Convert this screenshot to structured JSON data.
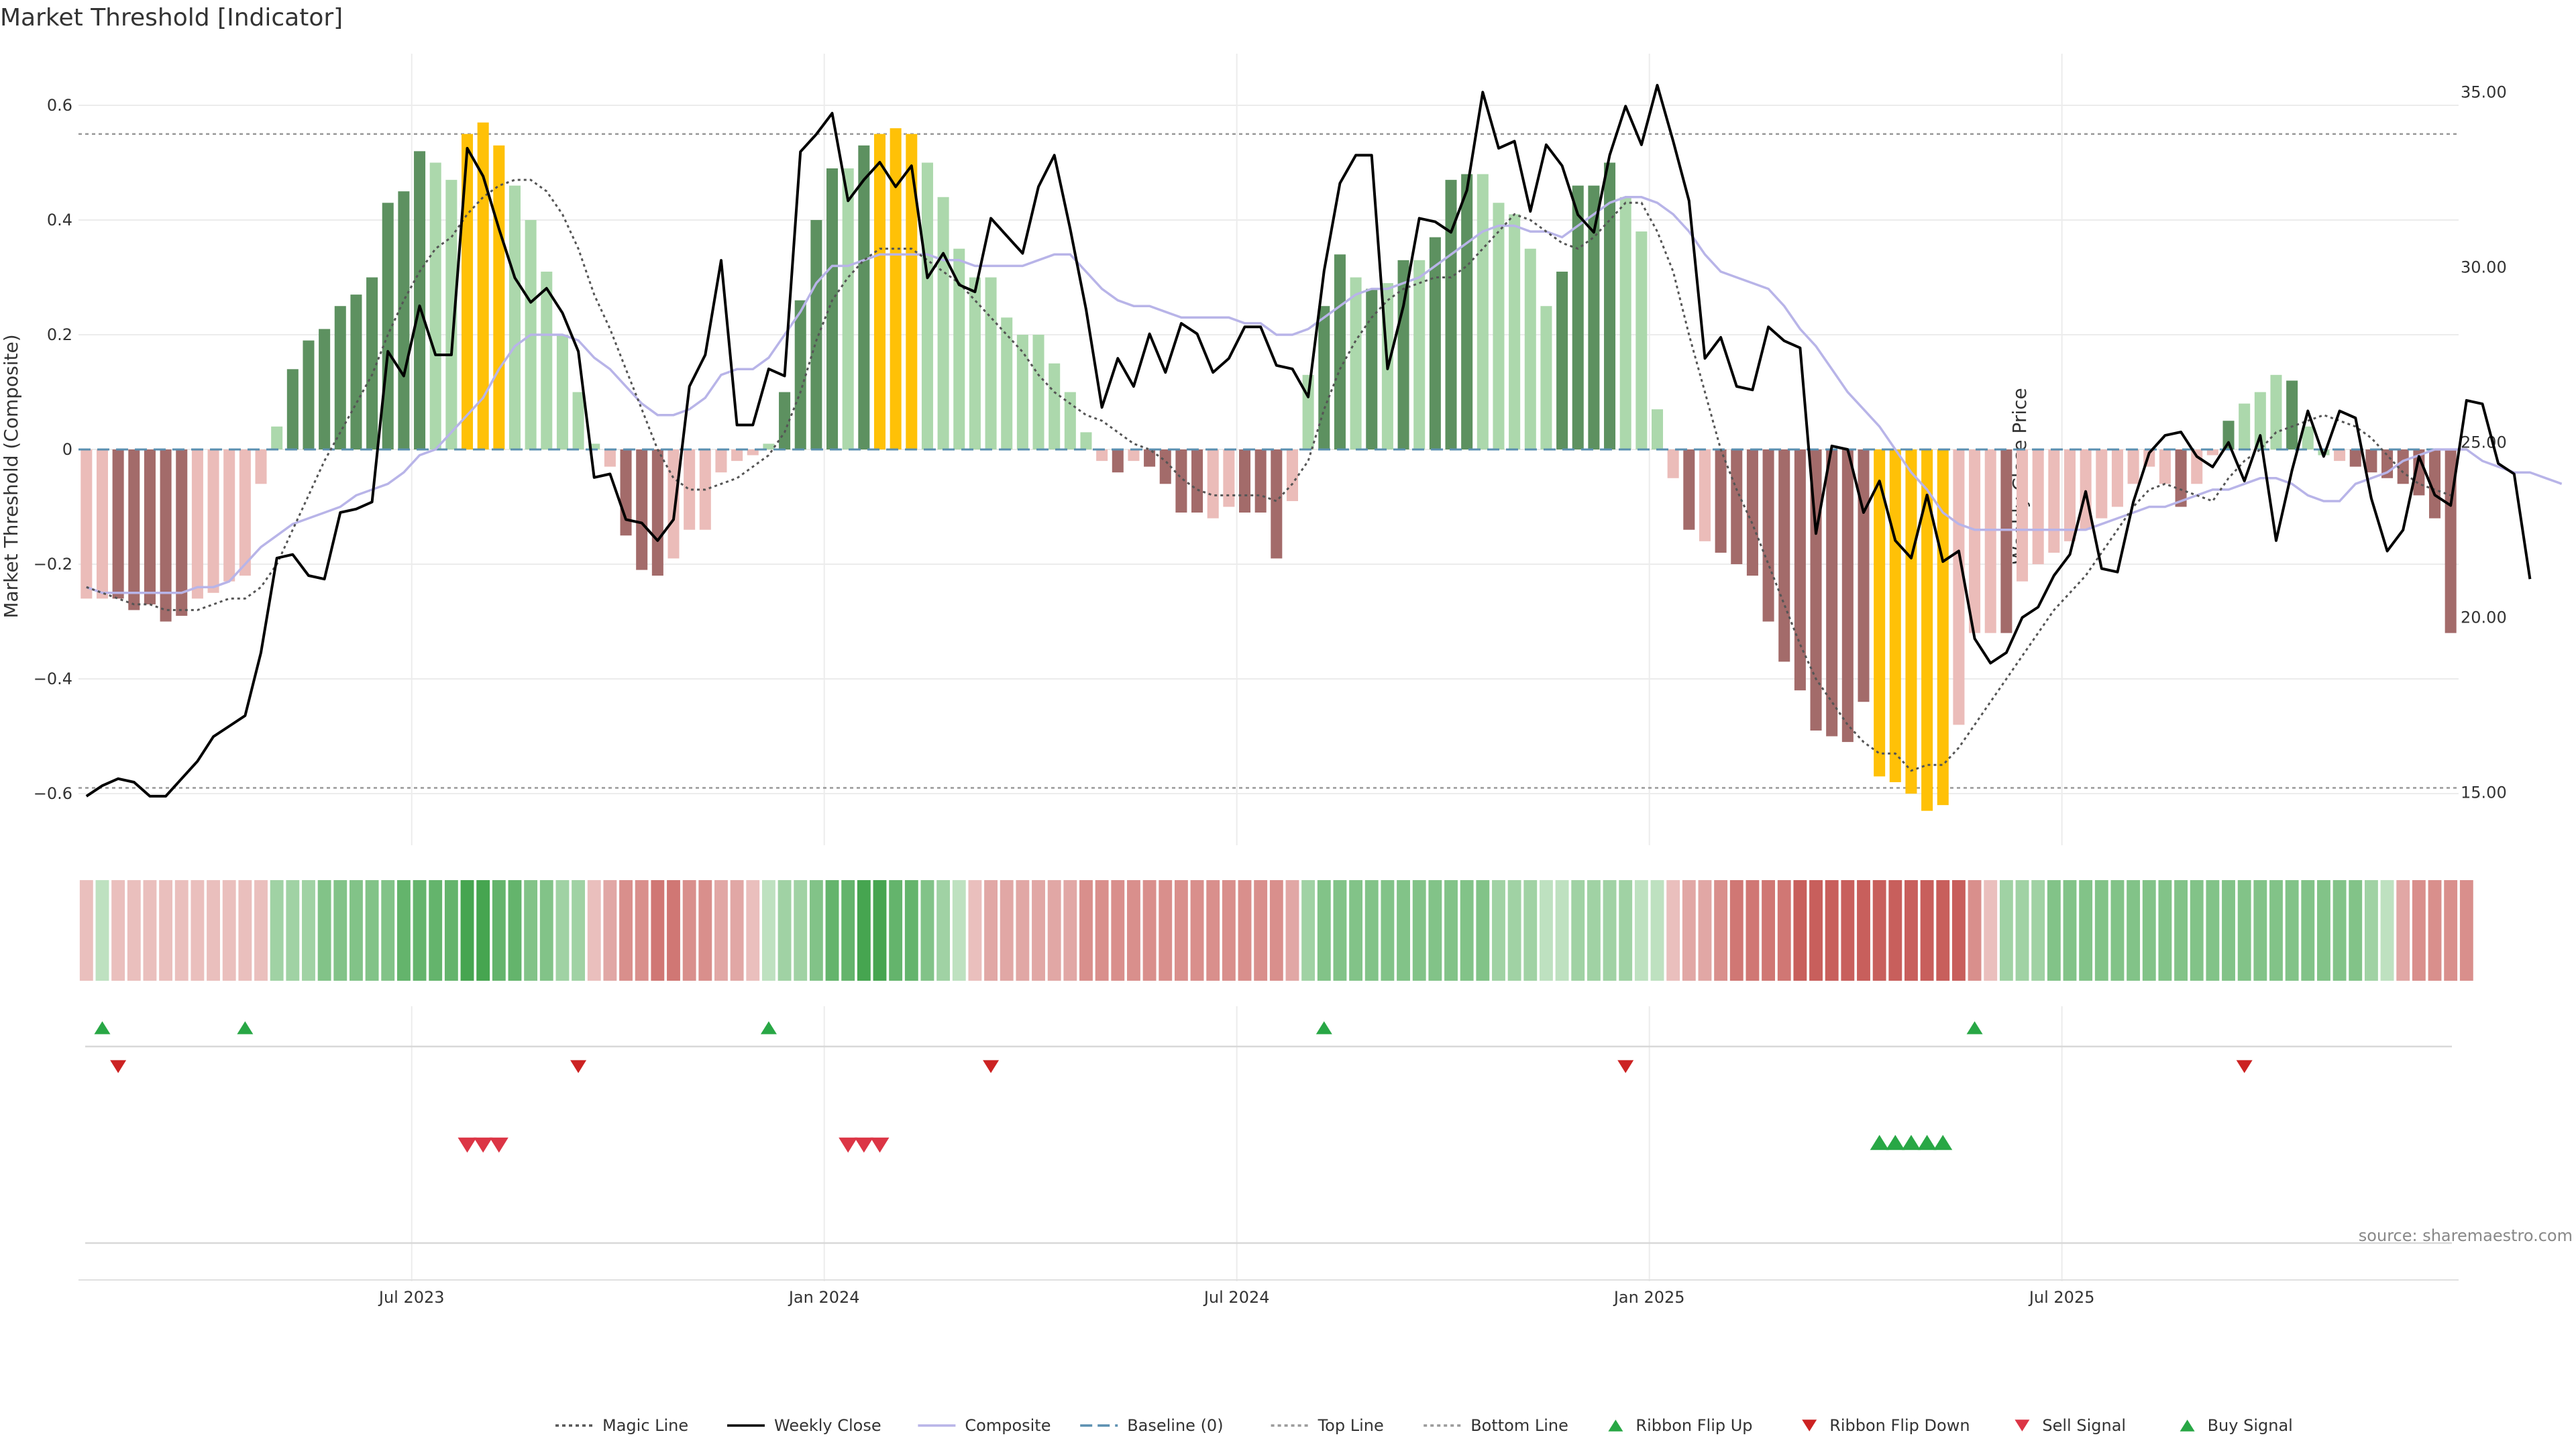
{
  "title": "Market Threshold [Indicator]",
  "source": "source: sharemaestro.com",
  "colors": {
    "strong_pos": "#5d9160",
    "weak_pos": "#acd8ac",
    "strong_neg": "#a36b6a",
    "weak_neg": "#ebbcb9",
    "extreme": "#ffc107",
    "weekly_close": "#000000",
    "composite": "#b8b4e8",
    "magic": "#555555",
    "baseline": "#5a8fb0",
    "grid": "#ececec",
    "sell": "#dc3545",
    "buy": "#28a745",
    "flip_up": "#28a745",
    "flip_down": "#cc2222"
  },
  "chart_data": {
    "type": "bar",
    "title": "Market Threshold [Indicator]",
    "ylabel": "Market Threshold (Composite)",
    "y2label": "Weekly Close Price",
    "ylim": [
      -0.69,
      0.69
    ],
    "y2lim": [
      13.5,
      36.1
    ],
    "yticks": [
      "0.6",
      "0.4",
      "0.2",
      "0",
      "−0.2",
      "−0.4",
      "−0.6"
    ],
    "yticks_values": [
      0.6,
      0.4,
      0.2,
      0,
      -0.2,
      -0.4,
      -0.6
    ],
    "y2ticks": [
      "35.00",
      "30.00",
      "25.00",
      "20.00",
      "15.00"
    ],
    "y2ticks_values": [
      35,
      30,
      25,
      20,
      15
    ],
    "xticks": [
      {
        "label": "Jul 2023",
        "week": 21
      },
      {
        "label": "Jan 2024",
        "week": 47
      },
      {
        "label": "Jul 2024",
        "week": 73
      },
      {
        "label": "Jan 2025",
        "week": 99
      },
      {
        "label": "Jul 2025",
        "week": 125
      }
    ],
    "top_line": 0.55,
    "bottom_line": -0.59,
    "baseline": 0,
    "grid": true,
    "legend_position": "bottom",
    "composite_bars": [
      -0.26,
      -0.26,
      -0.26,
      -0.28,
      -0.27,
      -0.3,
      -0.29,
      -0.26,
      -0.25,
      -0.23,
      -0.22,
      -0.06,
      0.04,
      0.14,
      0.19,
      0.21,
      0.25,
      0.27,
      0.3,
      0.43,
      0.45,
      0.52,
      0.5,
      0.47,
      0.55,
      0.57,
      0.53,
      0.46,
      0.4,
      0.31,
      0.2,
      0.1,
      0.01,
      -0.03,
      -0.15,
      -0.21,
      -0.22,
      -0.19,
      -0.14,
      -0.14,
      -0.04,
      -0.02,
      -0.01,
      0.01,
      0.1,
      0.26,
      0.4,
      0.49,
      0.49,
      0.53,
      0.55,
      0.56,
      0.55,
      0.5,
      0.44,
      0.35,
      0.3,
      0.3,
      0.23,
      0.2,
      0.2,
      0.15,
      0.1,
      0.03,
      -0.02,
      -0.04,
      -0.02,
      -0.03,
      -0.06,
      -0.11,
      -0.11,
      -0.12,
      -0.1,
      -0.11,
      -0.11,
      -0.19,
      -0.09,
      0.13,
      0.25,
      0.34,
      0.3,
      0.28,
      0.29,
      0.33,
      0.33,
      0.37,
      0.47,
      0.48,
      0.48,
      0.43,
      0.41,
      0.35,
      0.25,
      0.31,
      0.46,
      0.46,
      0.5,
      0.44,
      0.38,
      0.07,
      -0.05,
      -0.14,
      -0.16,
      -0.18,
      -0.2,
      -0.22,
      -0.3,
      -0.37,
      -0.42,
      -0.49,
      -0.5,
      -0.51,
      -0.44,
      -0.57,
      -0.58,
      -0.6,
      -0.63,
      -0.62,
      -0.48,
      -0.32,
      -0.32,
      -0.32,
      -0.23,
      -0.2,
      -0.18,
      -0.16,
      -0.14,
      -0.12,
      -0.1,
      -0.06,
      -0.03,
      -0.06,
      -0.1,
      -0.06,
      -0.01,
      0.05,
      0.08,
      0.1,
      0.13,
      0.12,
      0.04,
      -0.01,
      -0.02,
      -0.03,
      -0.04,
      -0.05,
      -0.06,
      -0.08,
      -0.12,
      -0.32
    ],
    "bar_classes": [
      "wn",
      "wn",
      "sn",
      "sn",
      "sn",
      "sn",
      "sn",
      "wn",
      "wn",
      "wn",
      "wn",
      "wn",
      "wp",
      "sp",
      "sp",
      "sp",
      "sp",
      "sp",
      "sp",
      "sp",
      "sp",
      "sp",
      "wp",
      "wp",
      "ex",
      "ex",
      "ex",
      "wp",
      "wp",
      "wp",
      "wp",
      "wp",
      "wp",
      "wn",
      "sn",
      "sn",
      "sn",
      "wn",
      "wn",
      "wn",
      "wn",
      "wn",
      "wn",
      "wp",
      "sp",
      "sp",
      "sp",
      "sp",
      "wp",
      "sp",
      "ex",
      "ex",
      "ex",
      "wp",
      "wp",
      "wp",
      "wp",
      "wp",
      "wp",
      "wp",
      "wp",
      "wp",
      "wp",
      "wp",
      "wn",
      "sn",
      "wn",
      "sn",
      "sn",
      "sn",
      "sn",
      "wn",
      "wn",
      "sn",
      "sn",
      "sn",
      "wn",
      "wp",
      "sp",
      "sp",
      "wp",
      "sp",
      "wp",
      "sp",
      "wp",
      "sp",
      "sp",
      "sp",
      "wp",
      "wp",
      "wp",
      "wp",
      "wp",
      "sp",
      "sp",
      "sp",
      "sp",
      "wp",
      "wp",
      "wp",
      "wn",
      "sn",
      "wn",
      "sn",
      "sn",
      "sn",
      "sn",
      "sn",
      "sn",
      "sn",
      "sn",
      "sn",
      "sn",
      "ex",
      "ex",
      "ex",
      "ex",
      "ex",
      "wn",
      "wn",
      "wn",
      "sn",
      "wn",
      "wn",
      "wn",
      "wn",
      "wn",
      "wn",
      "wn",
      "wn",
      "wn",
      "wn",
      "sn",
      "wn",
      "wn",
      "sp",
      "wp",
      "wp",
      "wp",
      "sp",
      "wp",
      "wp",
      "wn",
      "sn",
      "sn",
      "sn",
      "sn",
      "sn",
      "sn",
      "sn",
      "sn"
    ],
    "weekly_close": [
      14.9,
      15.2,
      15.4,
      15.3,
      14.9,
      14.9,
      15.4,
      15.9,
      16.6,
      16.9,
      17.2,
      19.0,
      21.7,
      21.8,
      21.2,
      21.1,
      23.0,
      23.1,
      23.3,
      27.6,
      26.9,
      28.9,
      27.5,
      27.5,
      33.4,
      32.6,
      31.1,
      29.7,
      29.0,
      29.4,
      28.7,
      27.6,
      24.0,
      24.1,
      22.8,
      22.7,
      22.2,
      22.8,
      26.6,
      27.5,
      30.2,
      25.5,
      25.5,
      27.1,
      26.9,
      33.3,
      33.8,
      34.4,
      31.9,
      32.5,
      33.0,
      32.3,
      32.9,
      29.7,
      30.4,
      29.5,
      29.3,
      31.4,
      30.9,
      30.4,
      32.3,
      33.2,
      31.1,
      28.8,
      26.0,
      27.4,
      26.6,
      28.1,
      27.0,
      28.4,
      28.1,
      27.0,
      27.4,
      28.3,
      28.3,
      27.2,
      27.1,
      26.3,
      29.9,
      32.4,
      33.2,
      33.2,
      27.1,
      28.9,
      31.4,
      31.3,
      31.0,
      32.2,
      35.0,
      33.4,
      33.6,
      31.6,
      33.5,
      32.9,
      31.5,
      31.0,
      33.2,
      34.6,
      33.5,
      35.2,
      33.6,
      31.9,
      27.4,
      28.0,
      26.6,
      26.5,
      28.3,
      27.9,
      27.7,
      22.4,
      24.9,
      24.8,
      23.0,
      23.9,
      22.2,
      21.7,
      23.5,
      21.6,
      21.9,
      19.4,
      18.7,
      19.0,
      20.0,
      20.3,
      21.2,
      21.8,
      23.6,
      21.4,
      21.3,
      23.3,
      24.7,
      25.2,
      25.3,
      24.6,
      24.3,
      25.0,
      23.9,
      25.2,
      22.2,
      24.2,
      25.9,
      24.6,
      25.9,
      25.7,
      23.4,
      21.9,
      22.5,
      24.6,
      23.5,
      23.2,
      26.2,
      26.1,
      24.4,
      24.1,
      21.1
    ],
    "composite_line": [
      -0.24,
      -0.25,
      -0.25,
      -0.25,
      -0.25,
      -0.25,
      -0.25,
      -0.24,
      -0.24,
      -0.23,
      -0.2,
      -0.17,
      -0.15,
      -0.13,
      -0.12,
      -0.11,
      -0.1,
      -0.08,
      -0.07,
      -0.06,
      -0.04,
      -0.01,
      0.0,
      0.03,
      0.06,
      0.09,
      0.14,
      0.18,
      0.2,
      0.2,
      0.2,
      0.19,
      0.16,
      0.14,
      0.11,
      0.08,
      0.06,
      0.06,
      0.07,
      0.09,
      0.13,
      0.14,
      0.14,
      0.16,
      0.2,
      0.24,
      0.29,
      0.32,
      0.32,
      0.33,
      0.34,
      0.34,
      0.34,
      0.34,
      0.33,
      0.33,
      0.32,
      0.32,
      0.32,
      0.32,
      0.33,
      0.34,
      0.34,
      0.31,
      0.28,
      0.26,
      0.25,
      0.25,
      0.24,
      0.23,
      0.23,
      0.23,
      0.23,
      0.22,
      0.22,
      0.2,
      0.2,
      0.21,
      0.23,
      0.25,
      0.27,
      0.28,
      0.28,
      0.29,
      0.3,
      0.32,
      0.34,
      0.36,
      0.38,
      0.39,
      0.39,
      0.38,
      0.38,
      0.37,
      0.39,
      0.41,
      0.43,
      0.44,
      0.44,
      0.43,
      0.41,
      0.38,
      0.34,
      0.31,
      0.3,
      0.29,
      0.28,
      0.25,
      0.21,
      0.18,
      0.14,
      0.1,
      0.07,
      0.04,
      0.0,
      -0.04,
      -0.07,
      -0.11,
      -0.13,
      -0.14,
      -0.14,
      -0.14,
      -0.14,
      -0.14,
      -0.14,
      -0.14,
      -0.14,
      -0.13,
      -0.12,
      -0.11,
      -0.1,
      -0.1,
      -0.09,
      -0.08,
      -0.07,
      -0.07,
      -0.06,
      -0.05,
      -0.05,
      -0.06,
      -0.08,
      -0.09,
      -0.09,
      -0.06,
      -0.05,
      -0.04,
      -0.02,
      -0.01,
      0.0,
      0.0,
      0.0,
      -0.02,
      -0.03,
      -0.04,
      -0.04,
      -0.05,
      -0.06
    ],
    "magic_line": [
      -0.24,
      -0.25,
      -0.26,
      -0.27,
      -0.27,
      -0.28,
      -0.28,
      -0.28,
      -0.27,
      -0.26,
      -0.26,
      -0.24,
      -0.2,
      -0.14,
      -0.08,
      -0.02,
      0.03,
      0.08,
      0.13,
      0.2,
      0.26,
      0.31,
      0.35,
      0.37,
      0.41,
      0.44,
      0.46,
      0.47,
      0.47,
      0.45,
      0.41,
      0.35,
      0.27,
      0.21,
      0.14,
      0.07,
      0.0,
      -0.05,
      -0.07,
      -0.07,
      -0.06,
      -0.05,
      -0.03,
      -0.01,
      0.03,
      0.1,
      0.19,
      0.26,
      0.3,
      0.33,
      0.35,
      0.35,
      0.35,
      0.33,
      0.31,
      0.29,
      0.26,
      0.23,
      0.2,
      0.17,
      0.13,
      0.1,
      0.08,
      0.06,
      0.05,
      0.03,
      0.01,
      0.0,
      -0.02,
      -0.05,
      -0.07,
      -0.08,
      -0.08,
      -0.08,
      -0.08,
      -0.09,
      -0.06,
      -0.02,
      0.07,
      0.14,
      0.19,
      0.23,
      0.26,
      0.28,
      0.29,
      0.3,
      0.3,
      0.32,
      0.35,
      0.38,
      0.41,
      0.4,
      0.38,
      0.36,
      0.35,
      0.37,
      0.4,
      0.43,
      0.43,
      0.38,
      0.31,
      0.2,
      0.1,
      0.0,
      -0.07,
      -0.13,
      -0.2,
      -0.27,
      -0.34,
      -0.4,
      -0.44,
      -0.48,
      -0.51,
      -0.53,
      -0.53,
      -0.56,
      -0.55,
      -0.55,
      -0.52,
      -0.48,
      -0.44,
      -0.4,
      -0.36,
      -0.32,
      -0.28,
      -0.25,
      -0.22,
      -0.18,
      -0.14,
      -0.1,
      -0.07,
      -0.06,
      -0.07,
      -0.08,
      -0.09,
      -0.05,
      -0.02,
      0.0,
      0.03,
      0.04,
      0.05,
      0.06,
      0.05,
      0.04,
      0.02,
      -0.01,
      -0.04,
      -0.06,
      -0.07,
      -0.08
    ],
    "ribbon_levels": [
      -1,
      1,
      -1,
      -1,
      -1,
      -1,
      -1,
      -1,
      -1,
      -1,
      -1,
      -1,
      2,
      2,
      2,
      3,
      3,
      3,
      3,
      3,
      4,
      4,
      4,
      4,
      5,
      5,
      4,
      4,
      3,
      3,
      2,
      2,
      -1,
      -2,
      -3,
      -3,
      -4,
      -4,
      -3,
      -3,
      -2,
      -2,
      -1,
      1,
      2,
      2,
      3,
      4,
      4,
      5,
      5,
      4,
      4,
      3,
      2,
      1,
      -1,
      -2,
      -2,
      -2,
      -2,
      -2,
      -2,
      -3,
      -3,
      -3,
      -3,
      -3,
      -3,
      -3,
      -3,
      -3,
      -3,
      -3,
      -3,
      -3,
      -2,
      2,
      3,
      3,
      3,
      3,
      3,
      3,
      3,
      3,
      3,
      3,
      3,
      2,
      2,
      2,
      1,
      1,
      2,
      2,
      2,
      2,
      1,
      1,
      -1,
      -2,
      -2,
      -3,
      -4,
      -4,
      -4,
      -4,
      -5,
      -5,
      -5,
      -5,
      -5,
      -5,
      -5,
      -5,
      -5,
      -5,
      -5,
      -3,
      -1,
      2,
      2,
      2,
      3,
      3,
      3,
      3,
      3,
      3,
      3,
      3,
      3,
      3,
      3,
      3,
      3,
      3,
      3,
      3,
      3,
      3,
      3,
      3,
      2,
      1,
      -2,
      -3,
      -3,
      -3,
      -3
    ],
    "ribbon_flip_up": [
      1,
      10,
      43,
      78,
      119
    ],
    "ribbon_flip_down": [
      2,
      31,
      57,
      97,
      136
    ],
    "sell_signals": [
      24,
      25,
      26,
      48,
      49,
      50
    ],
    "buy_signals": [
      113,
      114,
      115,
      116,
      117
    ],
    "legend": [
      {
        "label": "Magic Line",
        "kind": "dotted",
        "color": "#555555"
      },
      {
        "label": "Weekly Close",
        "kind": "solid",
        "color": "#000000"
      },
      {
        "label": "Composite",
        "kind": "solid",
        "color": "#b8b4e8"
      },
      {
        "label": "Baseline (0)",
        "kind": "dashed",
        "color": "#5a8fb0"
      },
      {
        "label": "Top Line",
        "kind": "dotted",
        "color": "#999999"
      },
      {
        "label": "Bottom Line",
        "kind": "dotted",
        "color": "#999999"
      },
      {
        "label": "Ribbon Flip Up",
        "kind": "tri-up",
        "color": "#28a745"
      },
      {
        "label": "Ribbon Flip Down",
        "kind": "tri-down",
        "color": "#cc2222"
      },
      {
        "label": "Sell Signal",
        "kind": "tri-down",
        "color": "#dc3545"
      },
      {
        "label": "Buy Signal",
        "kind": "tri-up",
        "color": "#28a745"
      }
    ]
  }
}
